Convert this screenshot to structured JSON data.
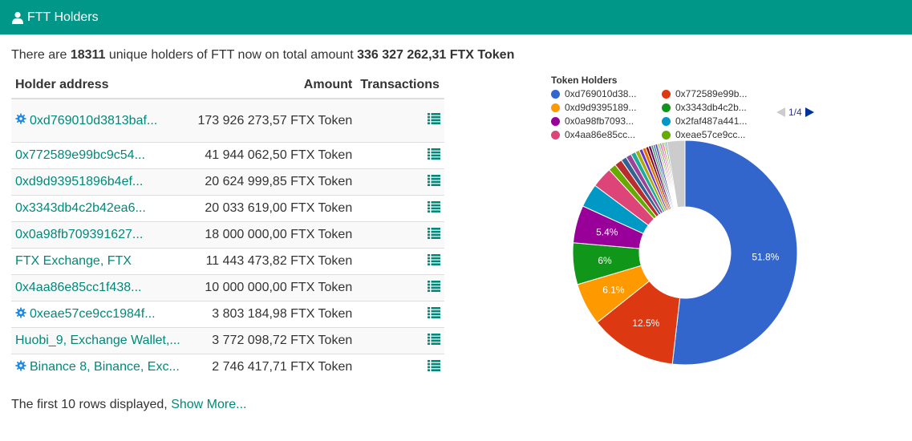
{
  "header": {
    "title": "FTT Holders",
    "icon": "user-icon"
  },
  "summary": {
    "prefix": "There are ",
    "holders_count": "18311",
    "middle": " unique holders of FTT now on total amount ",
    "total_amount": "336 327 262,31 FTX Token"
  },
  "table": {
    "columns": {
      "address": "Holder address",
      "amount": "Amount",
      "transactions": "Transactions"
    },
    "rows": [
      {
        "address": "0xd769010d3813baf...",
        "amount": "173 926 273,57 FTX Token",
        "gear": true
      },
      {
        "address": "0x772589e99bc9c54...",
        "amount": "41 944 062,50 FTX Token",
        "gear": false
      },
      {
        "address": "0xd9d93951896b4ef...",
        "amount": "20 624 999,85 FTX Token",
        "gear": false
      },
      {
        "address": "0x3343db4c2b42ea6...",
        "amount": "20 033 619,00 FTX Token",
        "gear": false
      },
      {
        "address": "0x0a98fb709391627...",
        "amount": "18 000 000,00 FTX Token",
        "gear": false
      },
      {
        "address": "FTX Exchange, FTX",
        "amount": "11 443 473,82 FTX Token",
        "gear": false
      },
      {
        "address": "0x4aa86e85cc1f438...",
        "amount": "10 000 000,00 FTX Token",
        "gear": false
      },
      {
        "address": "0xeae57ce9cc1984f...",
        "amount": "3 803 184,98 FTX Token",
        "gear": true
      },
      {
        "address": "Huobi_9, Exchange Wallet,...",
        "amount": "3 772 098,72 FTX Token",
        "gear": false
      },
      {
        "address": "Binance 8, Binance, Exc...",
        "amount": "2 746 417,71 FTX Token",
        "gear": true
      }
    ]
  },
  "footer": {
    "text": "The first 10 rows displayed, ",
    "link": "Show More..."
  },
  "chart_data": {
    "type": "pie",
    "title": "Token Holders",
    "legend": {
      "placement": "top",
      "page": "1/4",
      "entries": [
        {
          "name": "0xd769010d38...",
          "color": "#3366cc"
        },
        {
          "name": "0x772589e99b...",
          "color": "#dc3912"
        },
        {
          "name": "0xd9d9395189...",
          "color": "#ff9900"
        },
        {
          "name": "0x3343db4c2b...",
          "color": "#109618"
        },
        {
          "name": "0x0a98fb7093...",
          "color": "#990099"
        },
        {
          "name": "0x2faf487a441...",
          "color": "#0099c6"
        },
        {
          "name": "0x4aa86e85cc...",
          "color": "#dd4477"
        },
        {
          "name": "0xeae57ce9cc...",
          "color": "#66aa00"
        }
      ]
    },
    "slices": [
      {
        "value": 51.8,
        "label": "51.8%",
        "color": "#3366cc"
      },
      {
        "value": 12.5,
        "label": "12.5%",
        "color": "#dc3912"
      },
      {
        "value": 6.1,
        "label": "6.1%",
        "color": "#ff9900"
      },
      {
        "value": 6.0,
        "label": "6%",
        "color": "#109618"
      },
      {
        "value": 5.4,
        "label": "5.4%",
        "color": "#990099"
      },
      {
        "value": 3.4,
        "label": "",
        "color": "#0099c6"
      },
      {
        "value": 3.0,
        "label": "",
        "color": "#dd4477"
      },
      {
        "value": 1.1,
        "label": "",
        "color": "#66aa00"
      },
      {
        "value": 1.1,
        "label": "",
        "color": "#b82e2e"
      },
      {
        "value": 0.8,
        "label": "",
        "color": "#316395"
      },
      {
        "value": 0.8,
        "label": "",
        "color": "#994499"
      },
      {
        "value": 0.7,
        "label": "",
        "color": "#22aa99"
      },
      {
        "value": 0.6,
        "label": "",
        "color": "#aaaa11"
      },
      {
        "value": 0.5,
        "label": "",
        "color": "#6633cc"
      },
      {
        "value": 0.5,
        "label": "",
        "color": "#e67300"
      },
      {
        "value": 0.4,
        "label": "",
        "color": "#8b0707"
      },
      {
        "value": 0.4,
        "label": "",
        "color": "#651067"
      },
      {
        "value": 0.3,
        "label": "",
        "color": "#329262"
      },
      {
        "value": 0.3,
        "label": "",
        "color": "#5574a6"
      },
      {
        "value": 0.3,
        "label": "",
        "color": "#3b3eac"
      },
      {
        "value": 0.2,
        "label": "",
        "color": "#b77322"
      },
      {
        "value": 0.2,
        "label": "",
        "color": "#16d620"
      },
      {
        "value": 0.2,
        "label": "",
        "color": "#b91383"
      },
      {
        "value": 0.2,
        "label": "",
        "color": "#f4359e"
      },
      {
        "value": 0.2,
        "label": "",
        "color": "#9c5935"
      },
      {
        "value": 0.2,
        "label": "",
        "color": "#a9c413"
      },
      {
        "value": 0.2,
        "label": "",
        "color": "#2a778d"
      },
      {
        "value": 2.6,
        "label": "",
        "color": "#cccccc"
      }
    ]
  }
}
